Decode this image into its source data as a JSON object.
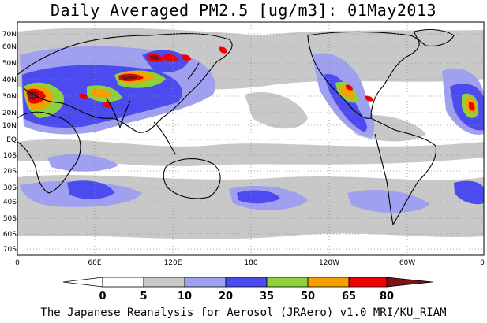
{
  "title": "Daily Averaged PM2.5 [ug/m3]: 01May2013",
  "footer": "The Japanese Reanalysis for Aerosol (JRAero) v1.0 MRI/KU_RIAM",
  "lat_labels": [
    "70N",
    "60N",
    "50N",
    "40N",
    "30N",
    "20N",
    "10N",
    "EQ",
    "10S",
    "20S",
    "30S",
    "40S",
    "50S",
    "60S",
    "70S"
  ],
  "lon_labels": [
    "0",
    "60E",
    "120E",
    "180",
    "120W",
    "60W",
    "0"
  ],
  "colorbar": {
    "levels": [
      "0",
      "5",
      "10",
      "20",
      "35",
      "50",
      "65",
      "80"
    ],
    "colors": [
      "#ffffff",
      "#c8c8c8",
      "#a0a0f0",
      "#4b4bf0",
      "#8cd23c",
      "#f5a000",
      "#f00000",
      "#7d1414"
    ]
  }
}
